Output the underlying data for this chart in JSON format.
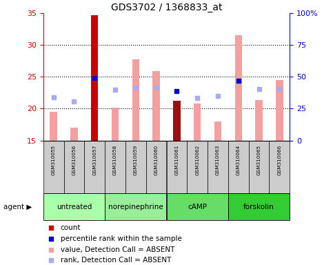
{
  "title": "GDS3702 / 1368833_at",
  "samples": [
    "GSM310055",
    "GSM310056",
    "GSM310057",
    "GSM310058",
    "GSM310059",
    "GSM310060",
    "GSM310061",
    "GSM310062",
    "GSM310063",
    "GSM310064",
    "GSM310065",
    "GSM310066"
  ],
  "agents": [
    {
      "label": "untreated",
      "indices": [
        0,
        1,
        2
      ],
      "color": "#aaffaa"
    },
    {
      "label": "norepinephrine",
      "indices": [
        3,
        4,
        5
      ],
      "color": "#99ee99"
    },
    {
      "label": "cAMP",
      "indices": [
        6,
        7,
        8
      ],
      "color": "#66dd66"
    },
    {
      "label": "forskolin",
      "indices": [
        9,
        10,
        11
      ],
      "color": "#33cc33"
    }
  ],
  "bar_values": [
    19.5,
    17.0,
    34.7,
    20.2,
    27.8,
    25.9,
    21.2,
    20.8,
    18.0,
    31.5,
    21.3,
    24.5
  ],
  "bar_colors": [
    "#f4a0a0",
    "#f4a0a0",
    "#cc0000",
    "#f4a0a0",
    "#f4a0a0",
    "#f4a0a0",
    "#9b1010",
    "#f4a0a0",
    "#f4a0a0",
    "#f4a0a0",
    "#f4a0a0",
    "#f4a0a0"
  ],
  "rank_dots": [
    21.8,
    21.1,
    24.8,
    23.0,
    23.3,
    23.3,
    null,
    21.7,
    22.0,
    24.4,
    23.1,
    23.1
  ],
  "rank_color": "#aaaaee",
  "percentile_dots": [
    null,
    null,
    24.8,
    null,
    null,
    null,
    22.8,
    null,
    null,
    24.4,
    null,
    null
  ],
  "percentile_color": "#0000cc",
  "ylim": [
    15,
    35
  ],
  "yticks_left": [
    15,
    20,
    25,
    30,
    35
  ],
  "grid_lines": [
    20,
    25,
    30
  ],
  "yticks_right_vals": [
    0,
    25,
    50,
    75,
    100
  ],
  "yticks_right_labels": [
    "0",
    "25",
    "50",
    "75",
    "100%"
  ],
  "ylabel_left_color": "#cc0000",
  "ylabel_right_color": "#0000cc",
  "label_bg": "#cccccc",
  "legend_items": [
    {
      "color": "#cc0000",
      "label": "count"
    },
    {
      "color": "#0000cc",
      "label": "percentile rank within the sample"
    },
    {
      "color": "#f4a0a0",
      "label": "value, Detection Call = ABSENT"
    },
    {
      "color": "#aaaaee",
      "label": "rank, Detection Call = ABSENT"
    }
  ]
}
